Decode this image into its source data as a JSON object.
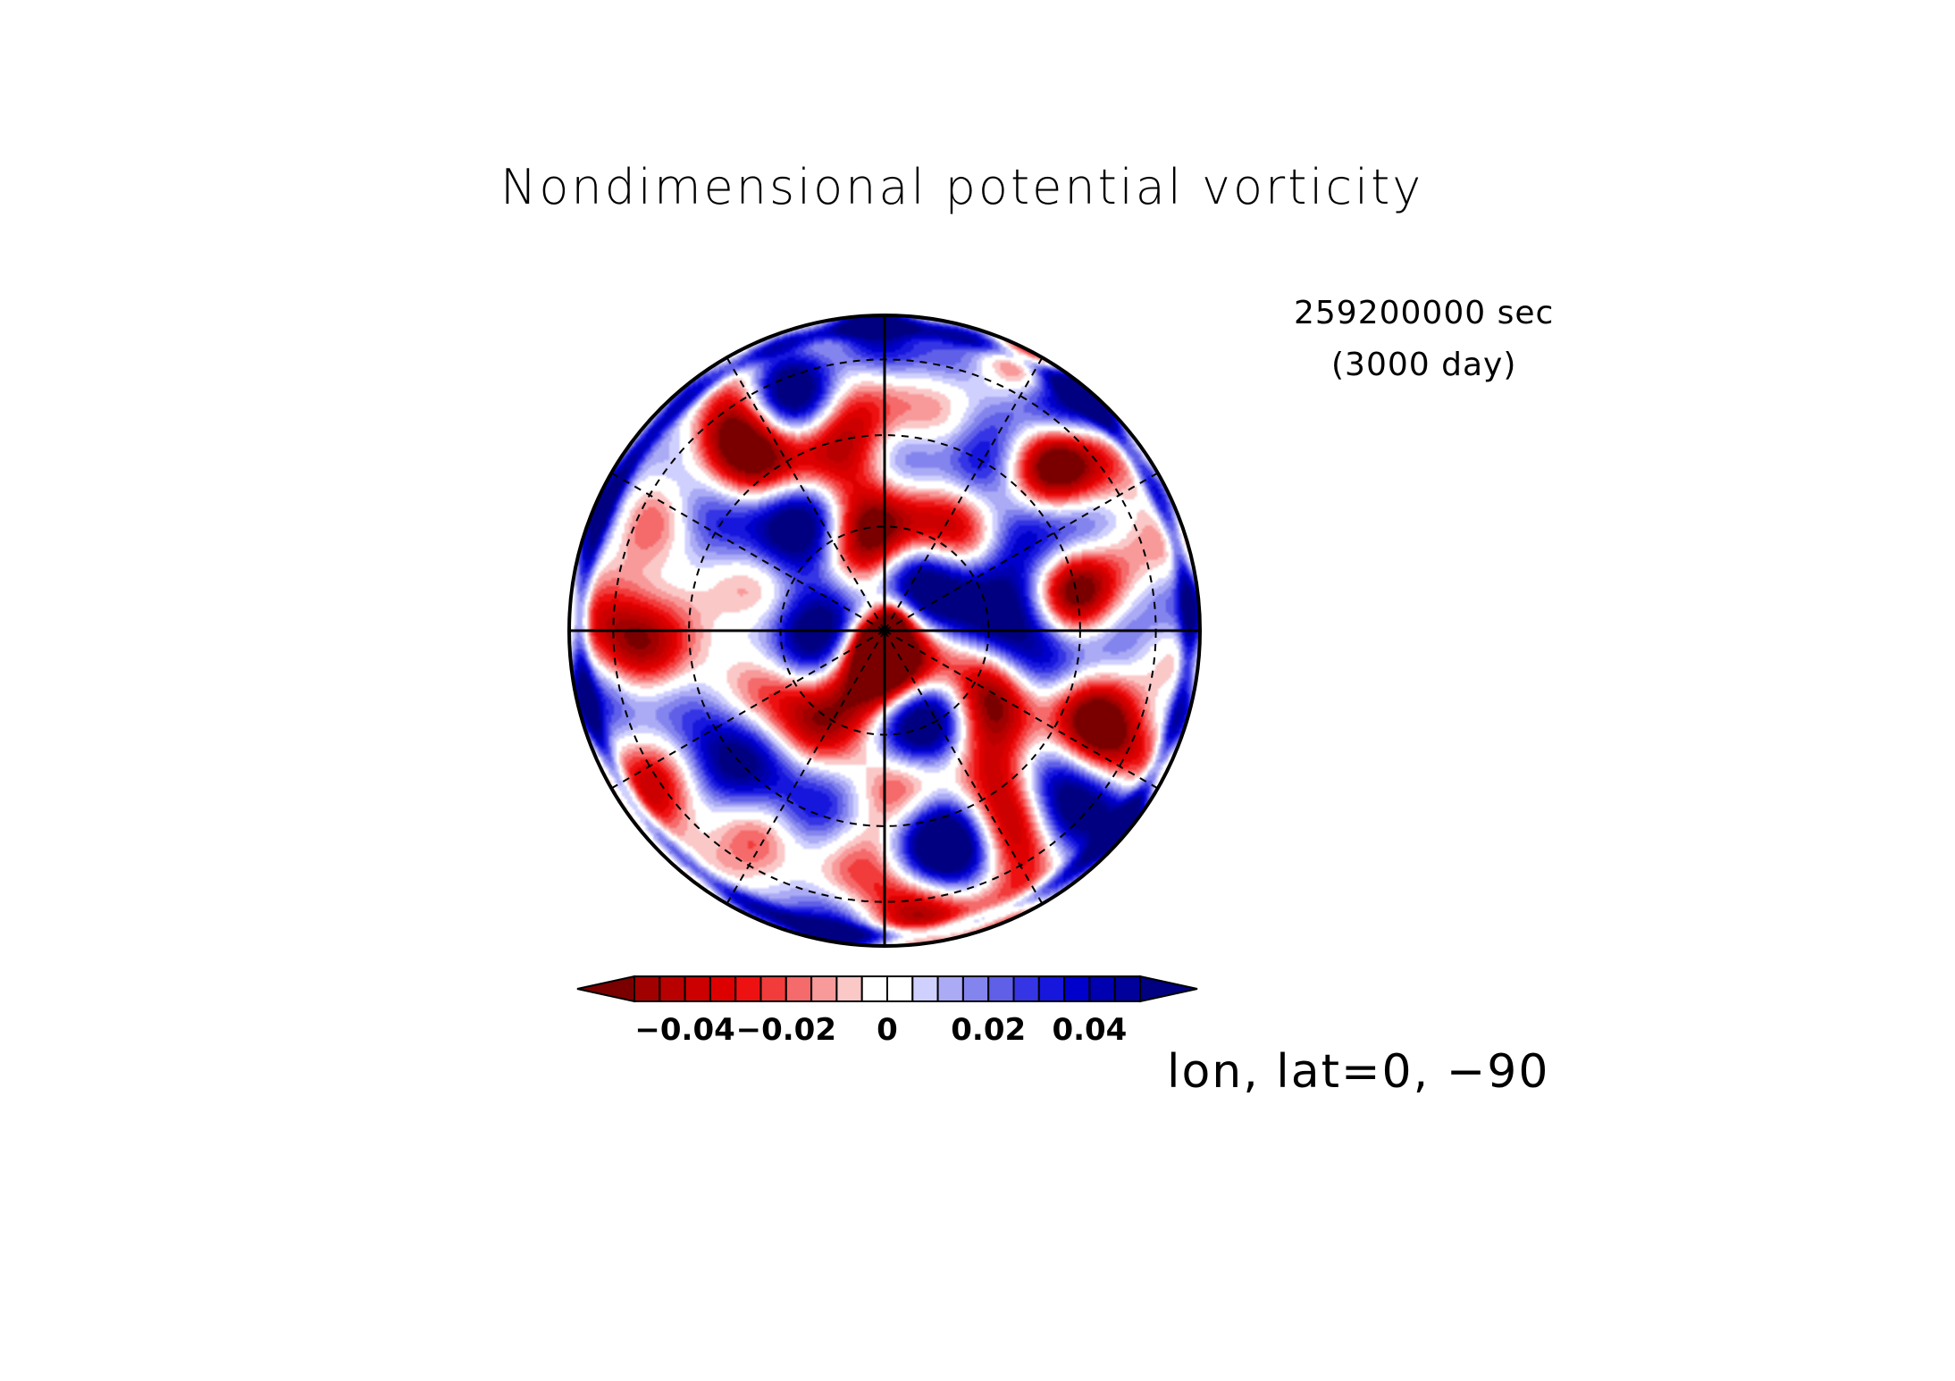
{
  "figure": {
    "title": "Nondimensional potential vorticity",
    "time_sec": "259200000 sec",
    "time_day": "(3000 day)",
    "projection_label": "lon, lat=0, −90"
  },
  "chart_data": {
    "type": "heatmap",
    "projection": "polar-stereographic, centered on lon=0, lat=-90",
    "title": "Nondimensional potential vorticity",
    "field_range": [
      -0.05,
      0.05
    ],
    "contour_interval": 0.005,
    "colorbar": {
      "ticks": [
        -0.04,
        -0.02,
        0,
        0.02,
        0.04
      ],
      "tick_labels": [
        "−0.04",
        "−0.02",
        "0",
        "0.02",
        "0.04"
      ],
      "extend": "both",
      "colors": [
        "#7a0000",
        "#a00000",
        "#b80000",
        "#cc0000",
        "#dd0000",
        "#ee1111",
        "#f23c3c",
        "#f56a6a",
        "#f89a9a",
        "#fbc8c8",
        "#ffffff",
        "#ffffff",
        "#d0d0ff",
        "#aaaaf5",
        "#8484ee",
        "#5f5fe8",
        "#3535e5",
        "#1616dd",
        "#0000cc",
        "#0000b0",
        "#00009a",
        "#000080"
      ]
    },
    "grid": {
      "latitude_circles": true,
      "longitude_spokes_deg": 30,
      "solid_axes": true
    },
    "colors": {
      "negative": "#d40000",
      "positive": "#0000c0",
      "outline": "#000000"
    }
  }
}
